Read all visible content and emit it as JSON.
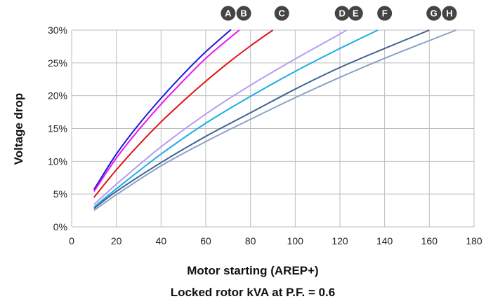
{
  "chart_data": {
    "type": "line",
    "title": "",
    "xlabel_lines": [
      "Motor starting (AREP+)",
      "Locked rotor kVA at P.F. = 0.6"
    ],
    "ylabel": "Voltage drop",
    "xlim": [
      0,
      180
    ],
    "ylim": [
      0,
      30
    ],
    "x_ticks": [
      0,
      20,
      40,
      60,
      80,
      100,
      120,
      140,
      160,
      180
    ],
    "y_ticks": [
      0,
      5,
      10,
      15,
      20,
      25,
      30
    ],
    "y_tick_labels": [
      "0%",
      "5%",
      "10%",
      "15%",
      "20%",
      "25%",
      "30%"
    ],
    "grid": true,
    "legend": "letter badges at top end of each curve",
    "series": [
      {
        "name": "A",
        "color": "#1a1adb",
        "x": [
          10,
          20,
          30,
          40,
          50,
          60,
          70,
          71
        ],
        "y": [
          5.7,
          11.1,
          15.6,
          19.6,
          23.3,
          26.7,
          29.7,
          30.0
        ]
      },
      {
        "name": "B",
        "color": "#ee11ee",
        "x": [
          10,
          20,
          30,
          40,
          50,
          60,
          70,
          75
        ],
        "y": [
          5.4,
          10.5,
          14.8,
          18.7,
          22.3,
          25.7,
          28.6,
          30.0
        ]
      },
      {
        "name": "C",
        "color": "#e01414",
        "x": [
          10,
          20,
          30,
          40,
          50,
          60,
          70,
          80,
          90
        ],
        "y": [
          4.5,
          8.7,
          12.5,
          16.0,
          19.2,
          22.2,
          25.0,
          27.6,
          30.0
        ]
      },
      {
        "name": "D",
        "color": "#b79cf2",
        "x": [
          10,
          20,
          40,
          60,
          80,
          100,
          120,
          123
        ],
        "y": [
          3.4,
          6.5,
          12.2,
          17.2,
          21.6,
          25.6,
          29.4,
          30.0
        ]
      },
      {
        "name": "E",
        "color": "#1aaee4",
        "x": [
          10,
          20,
          40,
          60,
          80,
          100,
          120,
          137
        ],
        "y": [
          3.0,
          5.8,
          11.1,
          15.8,
          19.9,
          23.7,
          27.2,
          30.0
        ]
      },
      {
        "name": "G",
        "color": "#3e6293",
        "x": [
          10,
          20,
          40,
          60,
          80,
          100,
          120,
          140,
          160
        ],
        "y": [
          2.8,
          5.4,
          9.8,
          13.8,
          17.4,
          21.0,
          24.3,
          27.2,
          30.0
        ]
      },
      {
        "name": "H",
        "color": "#8aa2c6",
        "x": [
          10,
          20,
          40,
          60,
          80,
          100,
          120,
          140,
          160,
          172
        ],
        "y": [
          2.5,
          4.9,
          9.3,
          13.0,
          16.4,
          19.7,
          22.8,
          25.7,
          28.4,
          30.0
        ]
      }
    ],
    "badges": [
      {
        "label": "A",
        "x": 70
      },
      {
        "label": "B",
        "x": 77
      },
      {
        "label": "C",
        "x": 94
      },
      {
        "label": "D",
        "x": 121
      },
      {
        "label": "E",
        "x": 127
      },
      {
        "label": "F",
        "x": 140
      },
      {
        "label": "G",
        "x": 162
      },
      {
        "label": "H",
        "x": 169
      }
    ],
    "badge_color": "#444444"
  }
}
